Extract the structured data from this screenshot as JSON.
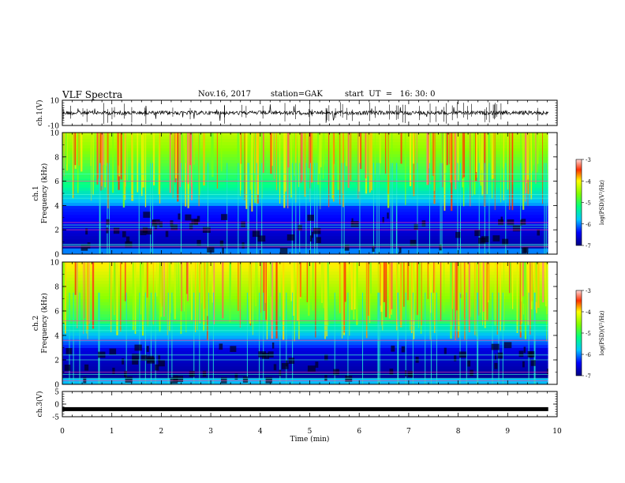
{
  "header": {
    "title": "VLF Spectra",
    "date": "Nov.16, 2017",
    "station": "station=GAK",
    "start": "start  UT  =   16: 30: 0"
  },
  "colorbar": {
    "label": "log(PSD)(V²/Hz)",
    "ticks": [
      "-3",
      "-4",
      "-5",
      "-6",
      "-7"
    ],
    "range": [
      -7,
      -3
    ]
  },
  "chart_data": [
    {
      "type": "line",
      "panel": "ch1-waveform",
      "ylabel": "ch.1(V)",
      "ylim": [
        -10,
        10
      ],
      "yticks": [
        "10",
        "-10"
      ],
      "xlim": [
        0,
        10
      ],
      "description_level": 0
    },
    {
      "type": "heatmap",
      "panel": "ch1-spectrogram",
      "ylabel": "ch.1 Frequency (kHz)",
      "ylim": [
        0,
        10
      ],
      "yticks": [
        "10",
        "8",
        "6",
        "4",
        "2",
        "0"
      ],
      "xlim": [
        0,
        10
      ],
      "zrange": [
        -7,
        -3
      ]
    },
    {
      "type": "heatmap",
      "panel": "ch2-spectrogram",
      "ylabel": "ch.2 Frequency (kHz)",
      "ylim": [
        0,
        10
      ],
      "yticks": [
        "10",
        "8",
        "6",
        "4",
        "2",
        "0"
      ],
      "xlim": [
        0,
        10
      ],
      "zrange": [
        -7,
        -3
      ]
    },
    {
      "type": "line",
      "panel": "ch3-waveform",
      "ylabel": "ch.3(V)",
      "ylim": [
        -5,
        5
      ],
      "yticks": [
        "5",
        "0",
        "-5"
      ],
      "xlim": [
        0,
        10
      ],
      "description_level": 0
    }
  ],
  "xaxis": {
    "label": "Time (min)",
    "ticks": [
      "0",
      "1",
      "2",
      "3",
      "4",
      "5",
      "6",
      "7",
      "8",
      "9",
      "10"
    ],
    "range": [
      0,
      10
    ]
  },
  "colors": {
    "spec_low": "#000080",
    "spec_mid": "#00ff00",
    "spec_high": "#ff0000"
  }
}
